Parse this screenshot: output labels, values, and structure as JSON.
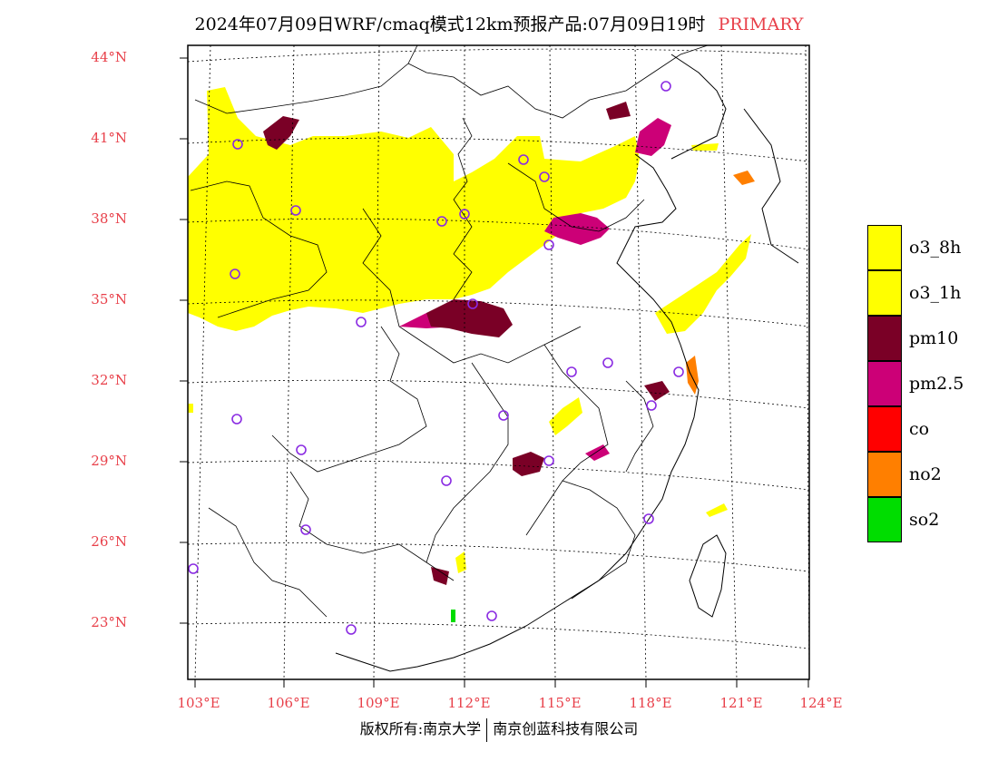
{
  "title": {
    "text": "2024年07月09日WRF/cmaq模式12km预报产品:07月09日19时",
    "tag": "PRIMARY"
  },
  "colors": {
    "label_red": "#e8404a",
    "o3": "#ffff00",
    "pm10": "#7a0026",
    "pm25": "#cc0077",
    "co": "#ff0000",
    "no2": "#ff7f00",
    "so2": "#00dd00",
    "station_circle": "#8a2be2"
  },
  "axes": {
    "lat_labels": [
      "44°N",
      "41°N",
      "38°N",
      "35°N",
      "32°N",
      "29°N",
      "26°N",
      "23°N"
    ],
    "lon_labels": [
      "103°E",
      "106°E",
      "109°E",
      "112°E",
      "115°E",
      "118°E",
      "121°E",
      "124°E"
    ]
  },
  "legend": [
    {
      "label": "o3_8h",
      "color": "#ffff00"
    },
    {
      "label": "o3_1h",
      "color": "#ffff00"
    },
    {
      "label": "pm10",
      "color": "#7a0026"
    },
    {
      "label": "pm2.5",
      "color": "#cc0077"
    },
    {
      "label": "co",
      "color": "#ff0000"
    },
    {
      "label": "no2",
      "color": "#ff7f00"
    },
    {
      "label": "so2",
      "color": "#00dd00"
    }
  ],
  "footer": {
    "left": "版权所有:南京大学",
    "right": "南京创蓝科技有限公司"
  }
}
